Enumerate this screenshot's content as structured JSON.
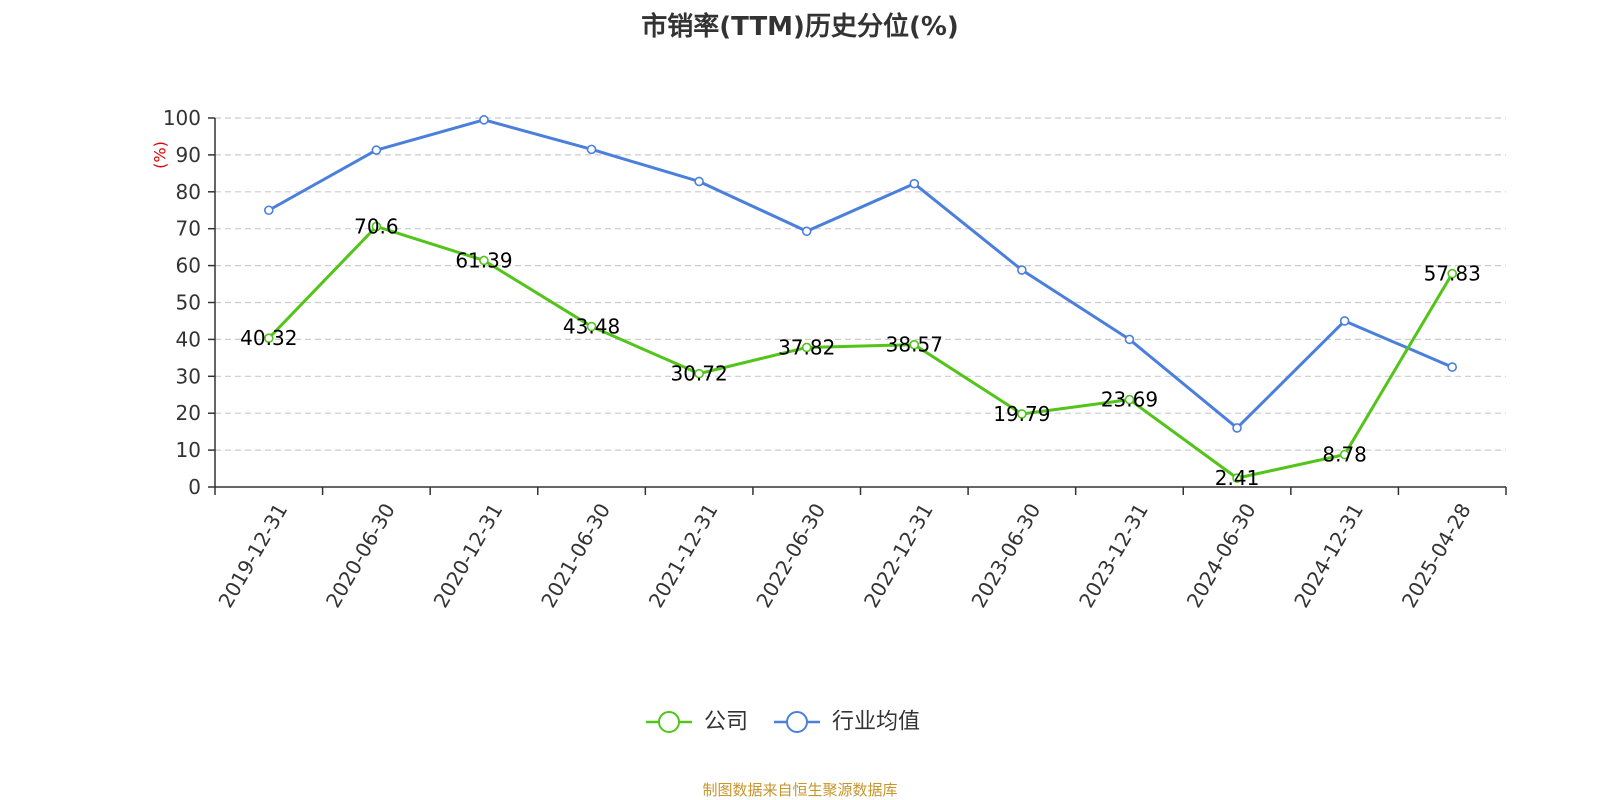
{
  "chart_data": {
    "type": "line",
    "title": "市销率(TTM)历史分位(%)",
    "ylabel": "(%)",
    "xlabel": "",
    "ylim": [
      0,
      100
    ],
    "yticks": [
      0,
      10,
      20,
      30,
      40,
      50,
      60,
      70,
      80,
      90,
      100
    ],
    "grid": true,
    "legend_position": "bottom",
    "categories": [
      "2019-12-31",
      "2020-06-30",
      "2020-12-31",
      "2021-06-30",
      "2021-12-31",
      "2022-06-30",
      "2022-12-31",
      "2023-06-30",
      "2023-12-31",
      "2024-06-30",
      "2024-12-31",
      "2025-04-28"
    ],
    "series": [
      {
        "name": "公司",
        "color": "#52c41a",
        "show_labels": true,
        "values": [
          40.32,
          70.6,
          61.39,
          43.48,
          30.72,
          37.82,
          38.57,
          19.79,
          23.69,
          2.41,
          8.78,
          57.83
        ],
        "labels": [
          "40.32",
          "70.6",
          "61.39",
          "43.48",
          "30.72",
          "37.82",
          "38.57",
          "19.79",
          "23.69",
          "2.41",
          "8.78",
          "57.83"
        ]
      },
      {
        "name": "行业均值",
        "color": "#4a7fdc",
        "show_labels": false,
        "values": [
          75,
          91.3,
          99.5,
          91.5,
          82.8,
          69.3,
          82.2,
          58.8,
          40,
          16,
          45,
          32.5
        ]
      }
    ]
  },
  "source": "制图数据来自恒生聚源数据库",
  "colors": {
    "axis": "#333333",
    "grid": "#cccccc",
    "ylabel": "#e00000",
    "source": "#c8952c"
  }
}
